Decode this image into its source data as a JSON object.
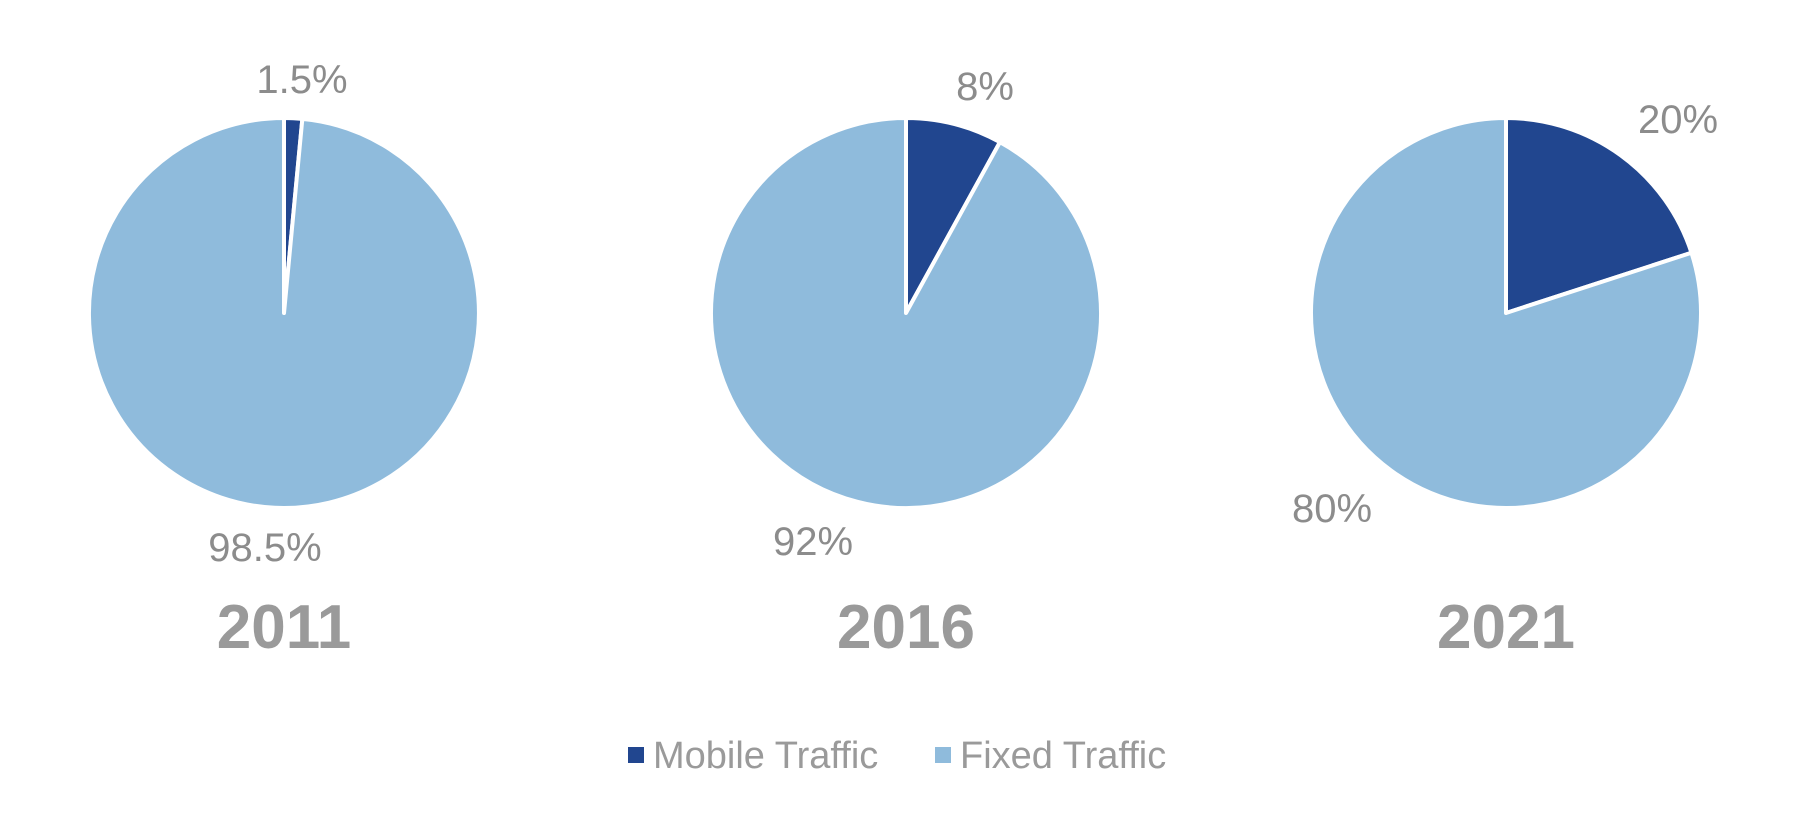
{
  "chart_data": [
    {
      "type": "pie",
      "title": "2011",
      "slices": [
        {
          "name": "Mobile Traffic",
          "value": 1.5,
          "label": "1.5%"
        },
        {
          "name": "Fixed Traffic",
          "value": 98.5,
          "label": "98.5%"
        }
      ]
    },
    {
      "type": "pie",
      "title": "2016",
      "slices": [
        {
          "name": "Mobile Traffic",
          "value": 8,
          "label": "8%"
        },
        {
          "name": "Fixed Traffic",
          "value": 92,
          "label": "92%"
        }
      ]
    },
    {
      "type": "pie",
      "title": "2021",
      "slices": [
        {
          "name": "Mobile Traffic",
          "value": 20,
          "label": "20%"
        },
        {
          "name": "Fixed Traffic",
          "value": 80,
          "label": "80%"
        }
      ]
    }
  ],
  "legend": {
    "placement": "bottom",
    "items": [
      {
        "name": "Mobile Traffic",
        "color": "#21468f"
      },
      {
        "name": "Fixed Traffic",
        "color": "#8fbbdc"
      }
    ]
  }
}
